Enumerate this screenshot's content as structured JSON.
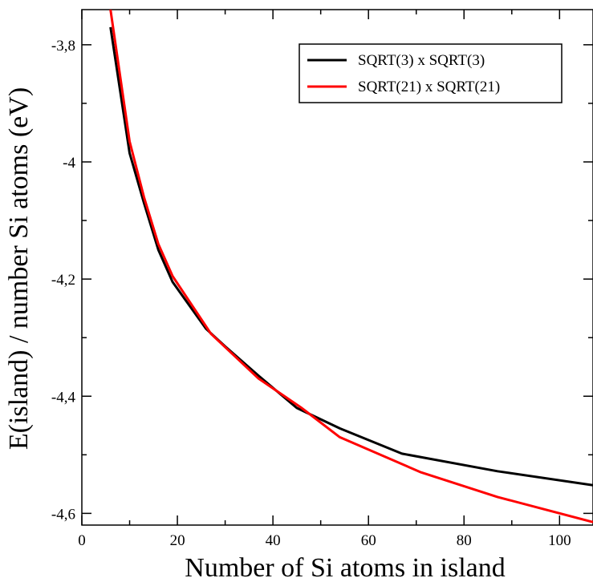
{
  "chart_data": {
    "type": "line",
    "title": "",
    "xlabel": "Number of Si atoms in island",
    "ylabel": "E(island) / number Si atoms (eV)",
    "xlim": [
      0,
      107
    ],
    "ylim": [
      -4.62,
      -3.74
    ],
    "xticks": [
      0,
      20,
      40,
      60,
      80,
      100
    ],
    "xtick_labels": [
      "0",
      "20",
      "40",
      "60",
      "80",
      "100"
    ],
    "yticks": [
      -3.8,
      -4.0,
      -4.2,
      -4.4,
      -4.6
    ],
    "ytick_labels": [
      "-3,8",
      "-4",
      "-4,2",
      "-4,4",
      "-4,6"
    ],
    "grid": false,
    "legend_position": "top-right",
    "series": [
      {
        "name": "SQRT(3) x SQRT(3)",
        "color": "#000000",
        "x": [
          6,
          10,
          13,
          16,
          19,
          26,
          30,
          37,
          45,
          54,
          67,
          87,
          107
        ],
        "y": [
          -3.77,
          -3.985,
          -4.07,
          -4.15,
          -4.205,
          -4.285,
          -4.315,
          -4.365,
          -4.42,
          -4.455,
          -4.498,
          -4.528,
          -4.552
        ]
      },
      {
        "name": "SQRT(21) x SQRT(21)",
        "color": "#ff0000",
        "x": [
          6,
          10,
          13,
          16,
          19,
          27,
          37,
          46,
          54,
          71,
          87,
          107
        ],
        "y": [
          -3.74,
          -3.965,
          -4.06,
          -4.14,
          -4.195,
          -4.293,
          -4.37,
          -4.42,
          -4.47,
          -4.53,
          -4.572,
          -4.615
        ]
      }
    ]
  }
}
